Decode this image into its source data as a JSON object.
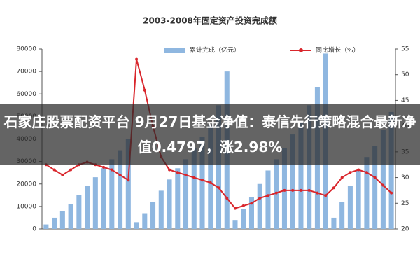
{
  "headline": "石家庄股票配资平台 9月27日基金净值：泰信先行策略混合最新净值0.4797，涨2.98%",
  "chart_data": {
    "type": "bar",
    "title": "2003-2008年固定资产投资完成额",
    "categories": [
      null,
      null,
      null,
      null,
      null,
      null,
      null,
      null,
      null,
      null,
      null,
      null,
      null,
      null,
      null,
      null,
      null,
      null,
      null,
      null,
      null,
      null,
      null,
      null,
      null,
      null,
      null,
      null,
      null,
      null,
      null,
      null,
      null,
      null,
      null,
      null,
      null,
      null,
      null,
      null,
      null,
      null,
      null
    ],
    "series": [
      {
        "name": "累计完成（亿元）",
        "color": "#8fb7e0",
        "values": [
          2000,
          5000,
          8000,
          11000,
          15000,
          19000,
          23000,
          27000,
          31000,
          35000,
          40000,
          3000,
          7000,
          12000,
          17000,
          22000,
          27000,
          31000,
          36000,
          41000,
          46000,
          55000,
          70000,
          4000,
          9000,
          14000,
          20000,
          26000,
          31000,
          36000,
          42000,
          48000,
          55000,
          63000,
          78000,
          5000,
          12000,
          19000,
          26000,
          32000,
          37000,
          44000,
          52000
        ]
      },
      {
        "name": "同比增长（%）",
        "color": "#d9262c",
        "axis": "y2",
        "values": [
          32.5,
          31.5,
          30.5,
          31.5,
          32.5,
          33,
          32.5,
          32,
          31.5,
          30.5,
          29.5,
          53,
          47,
          40,
          34,
          31.5,
          31,
          30.5,
          30,
          29.5,
          29,
          28,
          26,
          24,
          24.5,
          25,
          26,
          26.5,
          27,
          27.5,
          27.5,
          27.5,
          27.5,
          27,
          26.5,
          28,
          30,
          31,
          31.5,
          31,
          30,
          28.5,
          27
        ]
      }
    ],
    "ylim": [
      0,
      80000
    ],
    "yticks": [
      0,
      10000,
      20000,
      30000,
      40000,
      50000,
      60000,
      70000,
      80000
    ],
    "y2lim": [
      20,
      55
    ],
    "y2ticks": [
      20,
      25,
      30,
      35,
      40,
      45,
      50,
      55
    ]
  }
}
